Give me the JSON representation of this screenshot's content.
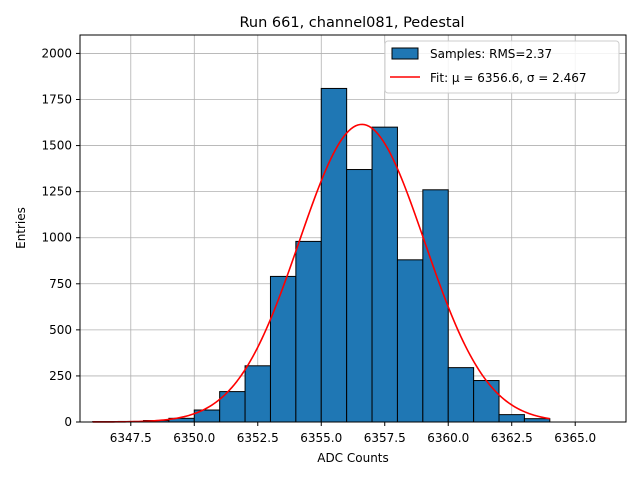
{
  "chart_data": {
    "type": "bar",
    "title": "Run 661, channel081, Pedestal",
    "xlabel": "ADC Counts",
    "ylabel": "Entries",
    "xlim": [
      6345.5,
      6367.0
    ],
    "ylim": [
      0,
      2100
    ],
    "xticks": [
      6347.5,
      6350.0,
      6352.5,
      6355.0,
      6357.5,
      6360.0,
      6362.5,
      6365.0
    ],
    "xtick_labels": [
      "6347.5",
      "6350.0",
      "6352.5",
      "6355.0",
      "6357.5",
      "6360.0",
      "6362.5",
      "6365.0"
    ],
    "yticks": [
      0,
      250,
      500,
      750,
      1000,
      1250,
      1500,
      1750,
      2000
    ],
    "ytick_labels": [
      "0",
      "250",
      "500",
      "750",
      "1000",
      "1250",
      "1500",
      "1750",
      "2000"
    ],
    "grid": true,
    "legend_position": "top-right",
    "histogram": {
      "name": "Samples: RMS=2.37",
      "color": "#1f77b4",
      "edge_color": "#000000",
      "bin_edges": [
        6346,
        6347,
        6348,
        6349,
        6350,
        6351,
        6352,
        6353,
        6354,
        6355,
        6356,
        6357,
        6358,
        6359,
        6360,
        6361,
        6362,
        6363,
        6364
      ],
      "counts": [
        2,
        3,
        8,
        20,
        65,
        165,
        305,
        790,
        980,
        1810,
        1370,
        1600,
        880,
        1260,
        295,
        225,
        40,
        18
      ]
    },
    "fit": {
      "name": "Fit: μ = 6356.6, σ = 2.467",
      "color": "#ff0000",
      "mu": 6356.6,
      "sigma": 2.467,
      "amplitude": 1615,
      "x_range": [
        6346,
        6364
      ]
    }
  }
}
